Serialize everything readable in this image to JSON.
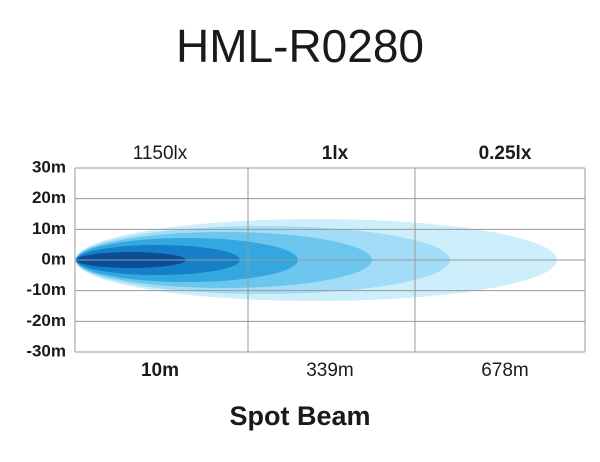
{
  "title": "HML-R0280",
  "illuminance_labels": [
    "1150lx",
    "1lx",
    "0.25lx"
  ],
  "y_axis_labels": [
    "30m",
    "20m",
    "10m",
    "0m",
    "-10m",
    "-20m",
    "-30m"
  ],
  "distance_labels": [
    "10m",
    "339m",
    "678m"
  ],
  "caption": "Spot Beam"
}
